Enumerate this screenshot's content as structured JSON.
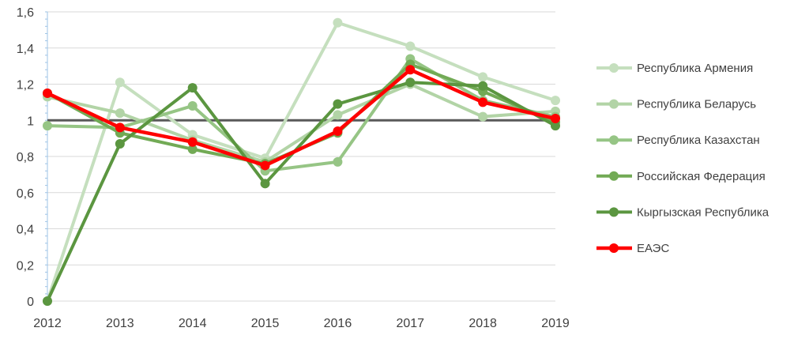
{
  "chart_data": {
    "type": "line",
    "title": "",
    "xlabel": "",
    "ylabel": "",
    "x": [
      "2012",
      "2013",
      "2014",
      "2015",
      "2016",
      "2017",
      "2018",
      "2019"
    ],
    "ylim": [
      0,
      1.6
    ],
    "yticks": [
      "0",
      "0,2",
      "0,4",
      "0,6",
      "0,8",
      "1",
      "1,2",
      "1,4",
      "1,6"
    ],
    "reference_line": 1,
    "grid": true,
    "legend_position": "right",
    "series": [
      {
        "name": "Республика Армения",
        "color": "#c5dfbe",
        "values": [
          0.0,
          1.21,
          0.92,
          0.79,
          1.54,
          1.41,
          1.24,
          1.11
        ]
      },
      {
        "name": "Республика Беларусь",
        "color": "#b2d4a6",
        "values": [
          1.13,
          1.04,
          0.89,
          0.77,
          1.03,
          1.2,
          1.02,
          1.05
        ]
      },
      {
        "name": "Республика Казахстан",
        "color": "#96c585",
        "values": [
          0.97,
          0.96,
          1.08,
          0.72,
          0.77,
          1.34,
          1.11,
          1.02
        ]
      },
      {
        "name": "Российская Федерация",
        "color": "#72aa55",
        "values": [
          1.15,
          0.93,
          0.84,
          0.76,
          0.93,
          1.31,
          1.16,
          0.99
        ]
      },
      {
        "name": "Кыргызская Республика",
        "color": "#5b9640",
        "values": [
          0.0,
          0.87,
          1.18,
          0.65,
          1.09,
          1.21,
          1.19,
          0.97
        ]
      },
      {
        "name": "ЕАЭС",
        "color": "#ff0000",
        "values": [
          1.15,
          0.96,
          0.88,
          0.75,
          0.94,
          1.28,
          1.1,
          1.01
        ]
      }
    ]
  }
}
